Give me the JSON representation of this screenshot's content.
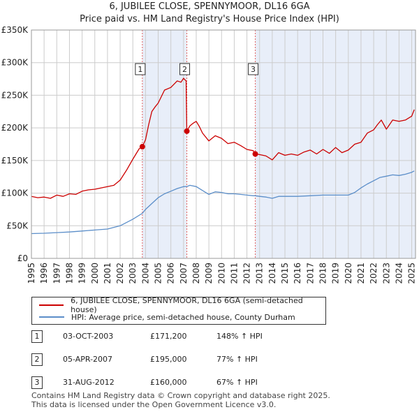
{
  "header": {
    "title_line1": "6, JUBILEE CLOSE, SPENNYMOOR, DL16 6GA",
    "title_line2": "Price paid vs. HM Land Registry's House Price Index (HPI)"
  },
  "colors": {
    "property": "#cc0000",
    "hpi": "#5b8ec9",
    "shade": "#e8eef9",
    "grid": "#cccccc",
    "marker_line": "#e06060"
  },
  "chart_data": {
    "type": "line",
    "title": "6, JUBILEE CLOSE, SPENNYMOOR, DL16 6GA",
    "subtitle": "Price paid vs. HM Land Registry's House Price Index (HPI)",
    "xlabel": "",
    "ylabel": "",
    "xlim": [
      1995,
      2025.3
    ],
    "ylim": [
      0,
      350000
    ],
    "x_ticks": [
      1995,
      1996,
      1997,
      1998,
      1999,
      2000,
      2001,
      2002,
      2003,
      2004,
      2005,
      2006,
      2007,
      2008,
      2009,
      2010,
      2011,
      2012,
      2013,
      2014,
      2015,
      2016,
      2017,
      2018,
      2019,
      2020,
      2021,
      2022,
      2023,
      2024,
      2025
    ],
    "y_ticks": [
      {
        "value": 0,
        "label": "£0"
      },
      {
        "value": 50000,
        "label": "£50K"
      },
      {
        "value": 100000,
        "label": "£100K"
      },
      {
        "value": 150000,
        "label": "£150K"
      },
      {
        "value": 200000,
        "label": "£200K"
      },
      {
        "value": 250000,
        "label": "£250K"
      },
      {
        "value": 300000,
        "label": "£300K"
      },
      {
        "value": 350000,
        "label": "£350K"
      }
    ],
    "grid": true,
    "shaded_ranges": [
      [
        2003.75,
        2007.26
      ],
      [
        2012.66,
        2025.3
      ]
    ],
    "series": [
      {
        "name": "6, JUBILEE CLOSE, SPENNYMOOR, DL16 6GA (semi-detached house)",
        "color": "#cc0000",
        "x": [
          1995,
          1995.5,
          1996,
          1996.5,
          1997,
          1997.5,
          1998,
          1998.5,
          1999,
          1999.5,
          2000,
          2000.5,
          2001,
          2001.5,
          2002,
          2002.5,
          2003,
          2003.5,
          2003.75,
          2004,
          2004.25,
          2004.5,
          2004.75,
          2005,
          2005.5,
          2006,
          2006.5,
          2006.8,
          2007,
          2007.2,
          2007.26,
          2007.5,
          2007.75,
          2008,
          2008.25,
          2008.5,
          2009,
          2009.5,
          2010,
          2010.5,
          2011,
          2011.5,
          2012,
          2012.5,
          2012.66,
          2013,
          2013.5,
          2014,
          2014.5,
          2015,
          2015.5,
          2016,
          2016.5,
          2017,
          2017.5,
          2018,
          2018.5,
          2019,
          2019.5,
          2020,
          2020.5,
          2021,
          2021.5,
          2022,
          2022.3,
          2022.6,
          2023,
          2023.5,
          2024,
          2024.5,
          2025,
          2025.2
        ],
        "values": [
          95000,
          93000,
          94000,
          92000,
          97000,
          95000,
          99000,
          98000,
          103000,
          105000,
          106000,
          108000,
          110000,
          112000,
          120000,
          135000,
          152000,
          168000,
          171200,
          182000,
          205000,
          225000,
          232000,
          238000,
          258000,
          262000,
          272000,
          270000,
          276000,
          272000,
          195000,
          203000,
          207000,
          210000,
          202000,
          192000,
          180000,
          188000,
          184000,
          176000,
          178000,
          173000,
          167000,
          165000,
          160000,
          159000,
          157000,
          151000,
          162000,
          158000,
          160000,
          158000,
          163000,
          166000,
          160000,
          167000,
          161000,
          170000,
          162000,
          166000,
          175000,
          178000,
          192000,
          197000,
          205000,
          212000,
          198000,
          212000,
          210000,
          212000,
          218000,
          228000
        ]
      },
      {
        "name": "HPI: Average price, semi-detached house, County Durham",
        "color": "#5b8ec9",
        "x": [
          1995,
          1996,
          1997,
          1998,
          1999,
          2000,
          2001,
          2002,
          2003,
          2003.75,
          2004,
          2004.5,
          2005,
          2005.5,
          2006,
          2006.5,
          2007,
          2007.26,
          2007.5,
          2008,
          2008.5,
          2009,
          2009.5,
          2010,
          2010.5,
          2011,
          2011.5,
          2012,
          2012.5,
          2012.66,
          2013,
          2013.5,
          2014,
          2014.5,
          2015,
          2016,
          2017,
          2018,
          2019,
          2020,
          2020.5,
          2021,
          2021.5,
          2022,
          2022.5,
          2023,
          2023.5,
          2024,
          2024.5,
          2025,
          2025.2
        ],
        "values": [
          38000,
          38500,
          39500,
          40500,
          42000,
          43500,
          45000,
          50000,
          60000,
          69000,
          75000,
          84000,
          93000,
          99000,
          103000,
          107000,
          110000,
          110000,
          112000,
          110000,
          104000,
          98000,
          102000,
          101000,
          99000,
          99000,
          98000,
          97000,
          96000,
          96000,
          95000,
          94000,
          92000,
          95000,
          95000,
          95000,
          96000,
          97000,
          97000,
          97000,
          101000,
          108000,
          114000,
          119000,
          124000,
          126000,
          128000,
          127000,
          129000,
          132000,
          134000
        ]
      }
    ],
    "sale_markers": [
      {
        "label": "1",
        "x": 2003.75,
        "y": 171200
      },
      {
        "label": "2",
        "x": 2007.26,
        "y": 195000
      },
      {
        "label": "3",
        "x": 2012.66,
        "y": 160000
      }
    ]
  },
  "legend": {
    "property_label": "6, JUBILEE CLOSE, SPENNYMOOR, DL16 6GA (semi-detached house)",
    "hpi_label": "HPI: Average price, semi-detached house, County Durham"
  },
  "sales": [
    {
      "num": "1",
      "date": "03-OCT-2003",
      "price": "£171,200",
      "hpi": "148% ↑ HPI"
    },
    {
      "num": "2",
      "date": "05-APR-2007",
      "price": "£195,000",
      "hpi": "77% ↑ HPI"
    },
    {
      "num": "3",
      "date": "31-AUG-2012",
      "price": "£160,000",
      "hpi": "67% ↑ HPI"
    }
  ],
  "footer": {
    "line1": "Contains HM Land Registry data © Crown copyright and database right 2025.",
    "line2": "This data is licensed under the Open Government Licence v3.0."
  }
}
